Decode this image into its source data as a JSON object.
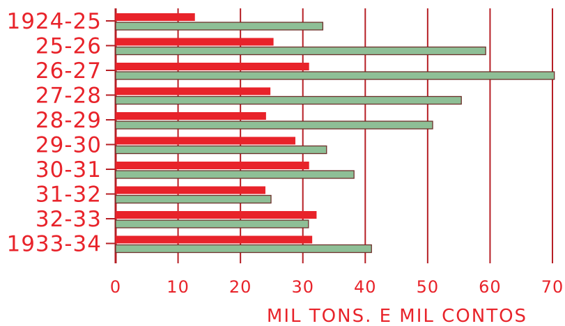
{
  "chart_data": {
    "type": "bar",
    "orientation": "horizontal",
    "categories": [
      "1924-25",
      "25-26",
      "26-27",
      "27-28",
      "28-29",
      "29-30",
      "30-31",
      "31-32",
      "32-33",
      "1933-34"
    ],
    "series": [
      {
        "values": [
          12.7,
          25.3,
          31.0,
          24.8,
          24.1,
          28.8,
          31.0,
          24.0,
          32.2,
          31.5
        ]
      },
      {
        "values": [
          33.2,
          59.3,
          70.3,
          55.4,
          50.8,
          33.8,
          38.2,
          24.9,
          30.9,
          41.0
        ]
      }
    ],
    "xticks": [
      "0",
      "10",
      "20",
      "30",
      "40",
      "50",
      "60",
      "70"
    ],
    "xlim": [
      0,
      70
    ],
    "xlabel": "MIL TONS. E MIL CONTOS",
    "grid": "vertical",
    "legend": "none",
    "colors": {
      "series_1": "#e8232a",
      "series_2": "#8ebf96",
      "bar_border": "#6d2f2a",
      "grid": "#b61f25",
      "labels": "#e8232a"
    }
  }
}
